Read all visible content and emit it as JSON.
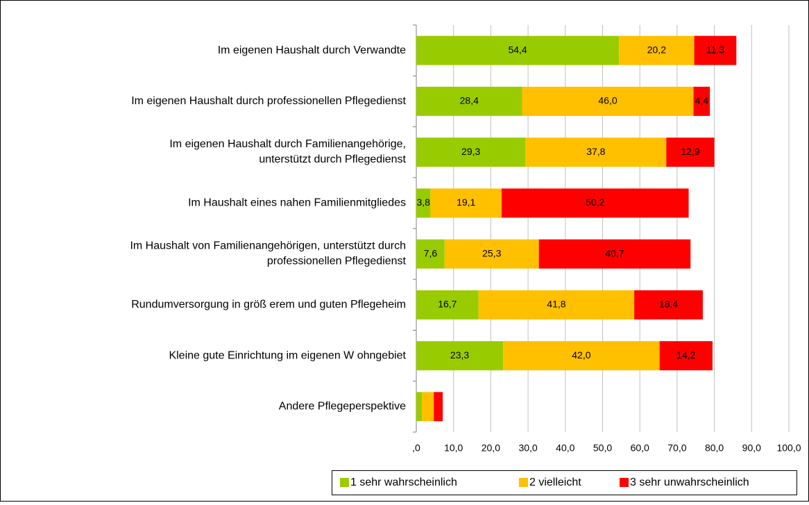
{
  "chart_data": {
    "type": "stacked_barh",
    "categories": [
      "Im eigenen Haushalt durch Verwandte",
      "Im eigenen Haushalt durch professionellen Pflegedienst",
      "Im eigenen Haushalt durch Familienangehörige,\nunterstützt durch Pflegedienst",
      "Im Haushalt eines nahen Familienmitgliedes",
      "Im Haushalt von Familienangehörigen, unterstützt durch\nprofessionellen Pflegedienst",
      "Rundumversorgung in größ erem und guten Pflegeheim",
      "Kleine gute Einrichtung im eigenen W ohngebiet",
      "Andere Pflegeperspektive"
    ],
    "series": [
      {
        "name": "1 sehr wahrscheinlich",
        "color": "#99cc00",
        "values": [
          54.4,
          28.4,
          29.3,
          3.8,
          7.6,
          16.7,
          23.3,
          1.5
        ],
        "value_labels": [
          "54,4",
          "28,4",
          "29,3",
          "3,8",
          "7,6",
          "16,7",
          "23,3",
          null
        ]
      },
      {
        "name": "2 vielleicht",
        "color": "#ffc000",
        "values": [
          20.2,
          46.0,
          37.8,
          19.1,
          25.3,
          41.8,
          42.0,
          3.2
        ],
        "value_labels": [
          "20,2",
          "46,0",
          "37,8",
          "19,1",
          "25,3",
          "41,8",
          "42,0",
          null
        ]
      },
      {
        "name": "3 sehr unwahrscheinlich",
        "color": "#ff0000",
        "values": [
          11.3,
          4.4,
          12.9,
          50.2,
          40.7,
          18.4,
          14.2,
          2.4
        ],
        "value_labels": [
          "11,3",
          "4,4",
          "12,9",
          "50,2",
          "40,7",
          "18,4",
          "14,2",
          null
        ]
      }
    ],
    "xlim": [
      0,
      100
    ],
    "xticks": [
      {
        "value": 0,
        "label": ",0"
      },
      {
        "value": 10,
        "label": "10,0"
      },
      {
        "value": 20,
        "label": "20,0"
      },
      {
        "value": 30,
        "label": "30,0"
      },
      {
        "value": 40,
        "label": "40,0"
      },
      {
        "value": 50,
        "label": "50,0"
      },
      {
        "value": 60,
        "label": "60,0"
      },
      {
        "value": 70,
        "label": "70,0"
      },
      {
        "value": 80,
        "label": "80,0"
      },
      {
        "value": 90,
        "label": "90,0"
      },
      {
        "value": 100,
        "label": "100,0"
      }
    ],
    "grid": true,
    "legend": "bottom"
  }
}
